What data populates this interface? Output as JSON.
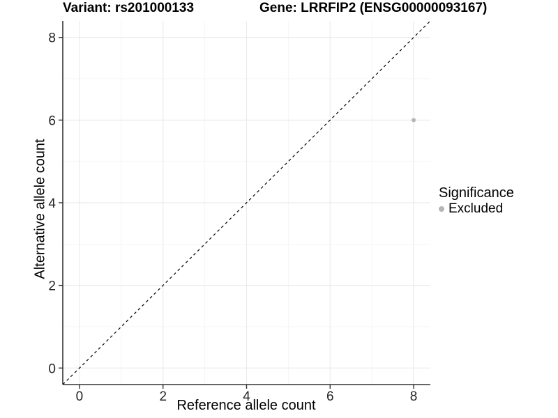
{
  "chart_data": {
    "type": "scatter",
    "titles": {
      "left": "Variant: rs201000133",
      "right": "Gene: LRRFIP2 (ENSG00000093167)"
    },
    "xlabel": "Reference allele count",
    "ylabel": "Alternative allele count",
    "xlim": [
      -0.4,
      8.4
    ],
    "ylim": [
      -0.4,
      8.4
    ],
    "x_ticks": [
      0,
      2,
      4,
      6,
      8
    ],
    "y_ticks": [
      0,
      2,
      4,
      6,
      8
    ],
    "x_minor_ticks": [
      1,
      3,
      5,
      7
    ],
    "y_minor_ticks": [
      1,
      3,
      5,
      7
    ],
    "grid": "major+minor",
    "identity_line": {
      "style": "dashed",
      "color": "#000000",
      "from": [
        -0.4,
        -0.4
      ],
      "to": [
        8.4,
        8.4
      ]
    },
    "series": [
      {
        "name": "Excluded",
        "color": "#b5b5b5",
        "points": [
          [
            8,
            6
          ]
        ]
      }
    ],
    "legend": {
      "title": "Significance",
      "position": "right",
      "items": [
        {
          "label": "Excluded",
          "color": "#b5b5b5"
        }
      ]
    }
  },
  "colors": {
    "background": "#ffffff",
    "axis_line": "#333333",
    "tick_text": "#262626",
    "grid_major": "#ebebeb",
    "grid_minor": "#f5f5f5"
  }
}
